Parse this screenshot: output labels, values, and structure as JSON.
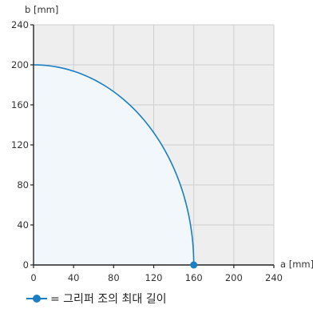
{
  "chart_data": {
    "type": "line",
    "title": "",
    "xlabel": "a [mm]",
    "ylabel": "b [mm]",
    "xlim": [
      0,
      240
    ],
    "ylim": [
      0,
      240
    ],
    "x_ticks": [
      0,
      40,
      80,
      120,
      160,
      200,
      240
    ],
    "y_ticks": [
      0,
      40,
      80,
      120,
      160,
      200,
      240
    ],
    "grid": true,
    "legend_position": "bottom-left",
    "colors": {
      "series": "#1a7fc4",
      "fill": "#f2f7fc",
      "plot_background": "#eeeeee",
      "grid": "#cfcfcf",
      "axis": "#222222"
    },
    "series": [
      {
        "name": "= 그리퍼 조의 최대 길이",
        "shape": "quarter-ellipse",
        "x_radius": 160,
        "y_radius": 200,
        "marker_point": {
          "x": 160,
          "y": 0
        }
      }
    ]
  }
}
